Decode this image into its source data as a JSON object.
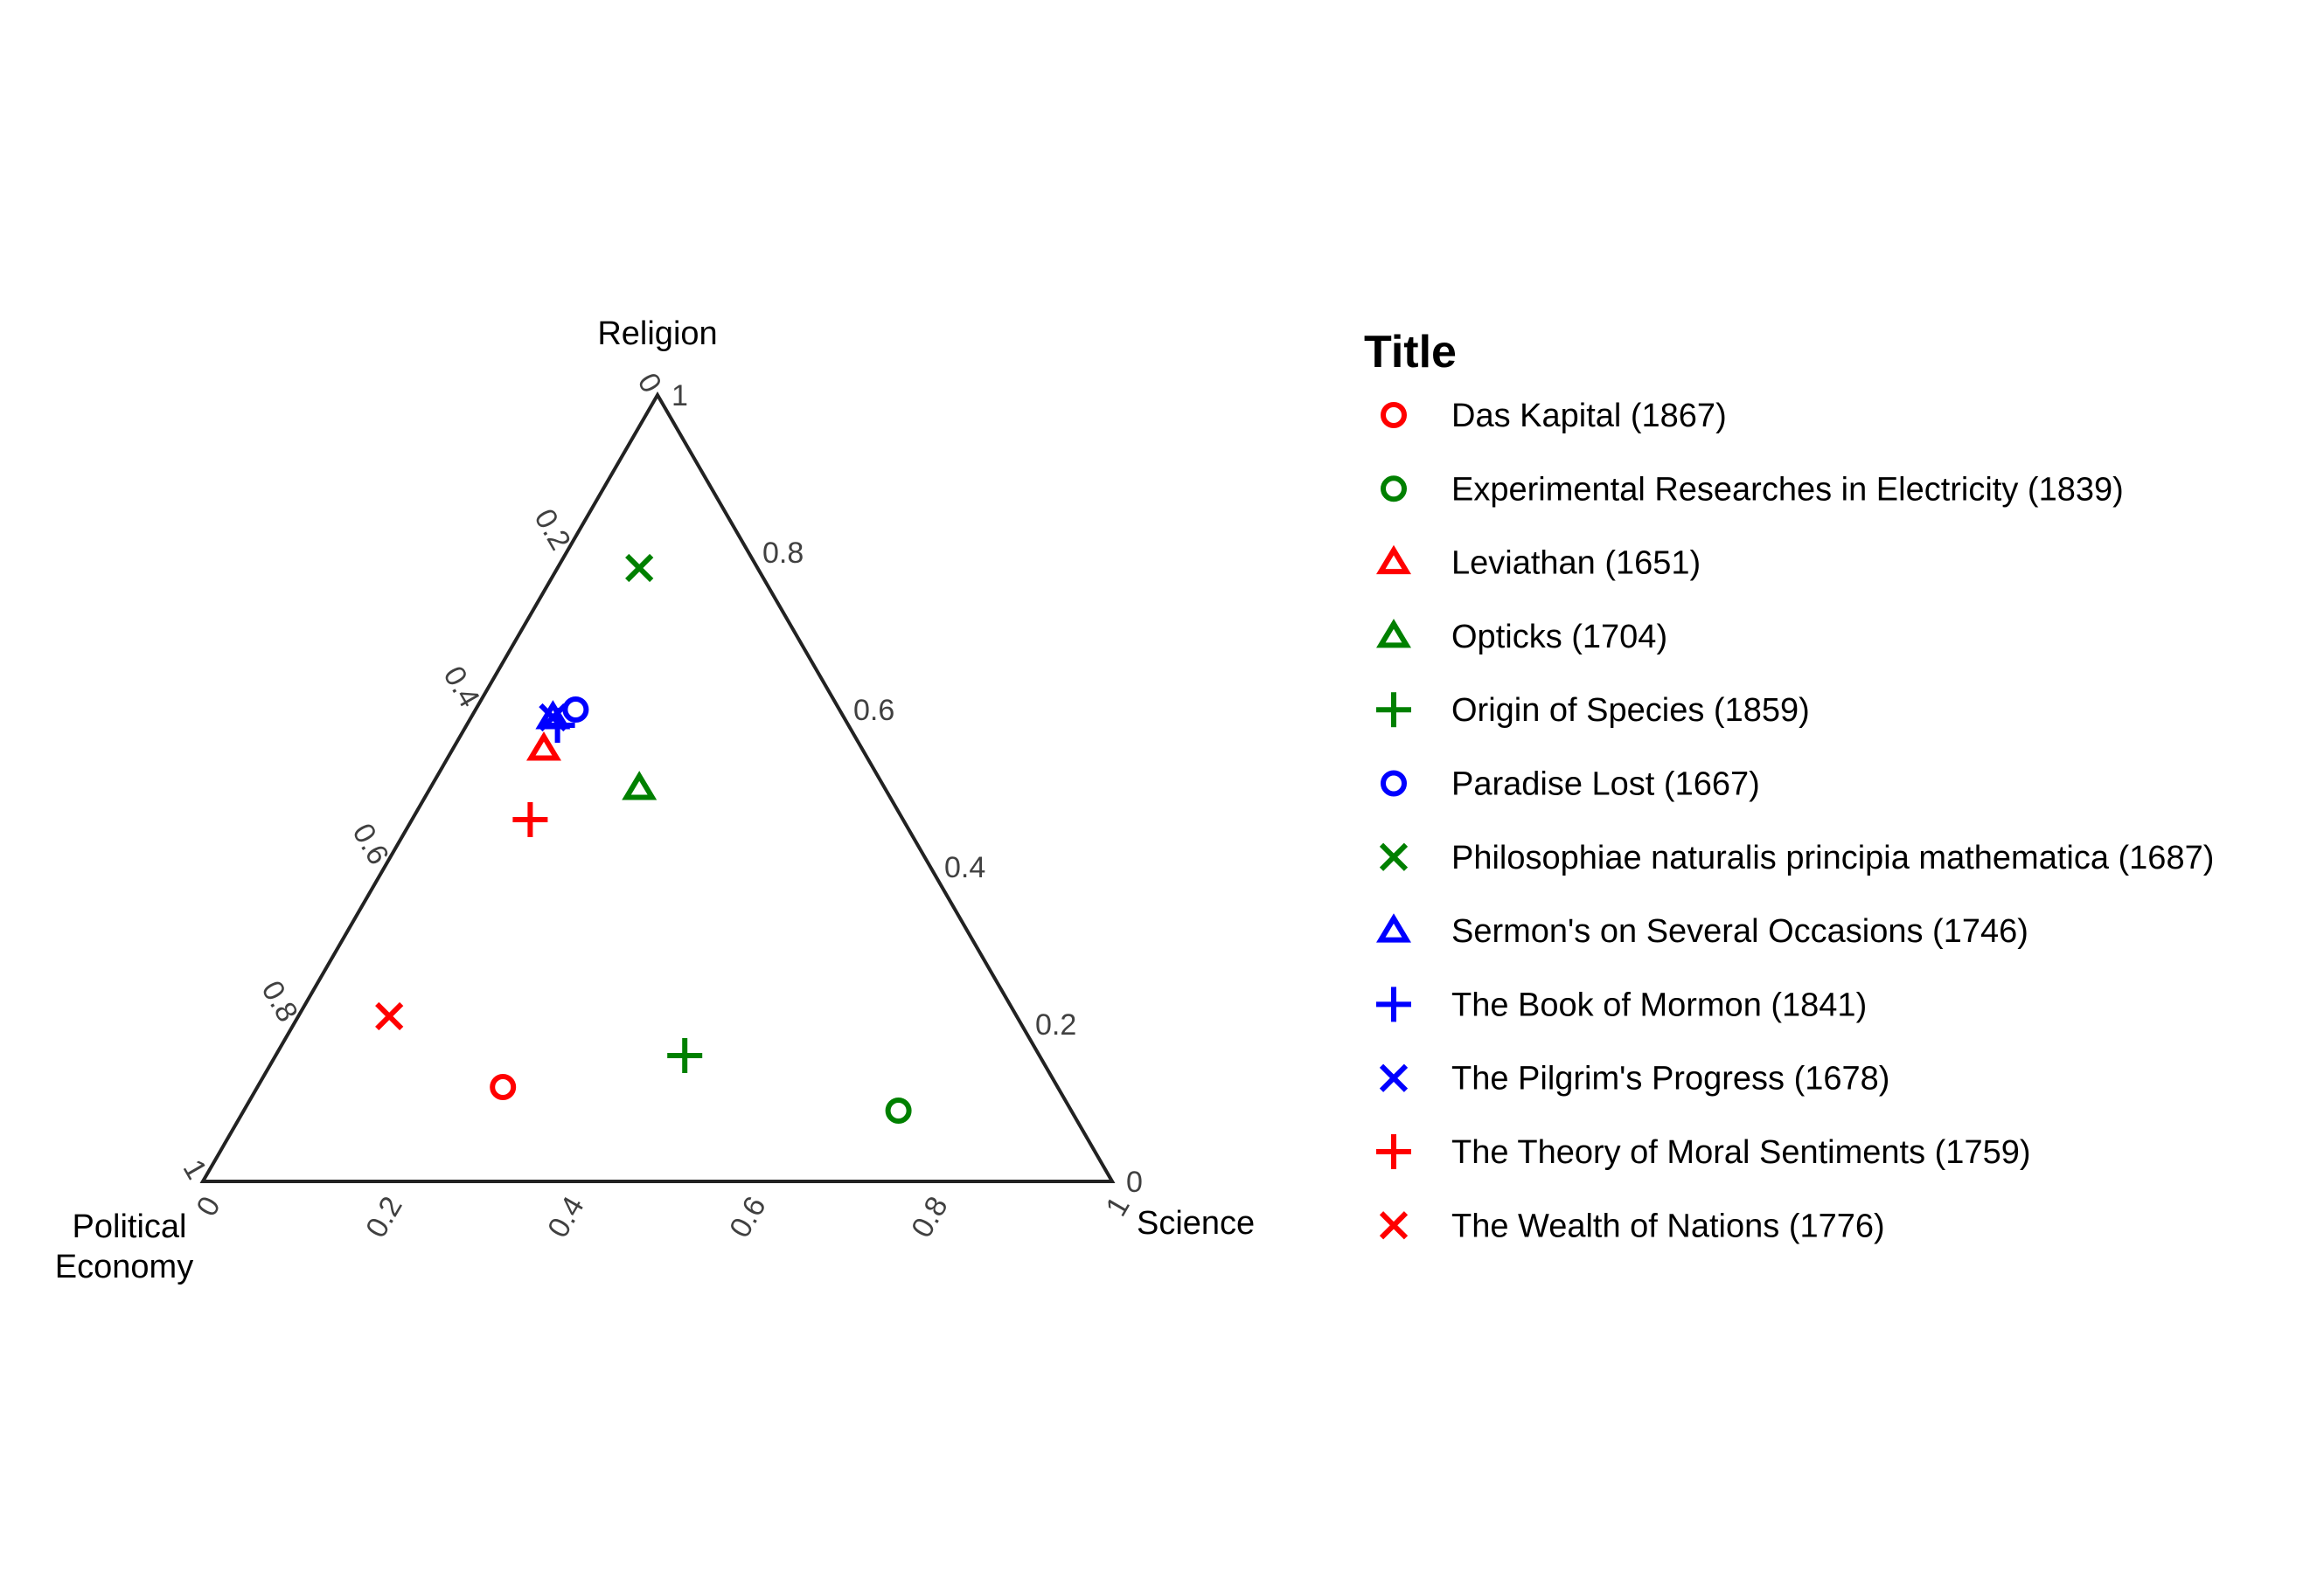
{
  "chart_data": {
    "type": "scatter",
    "subtype": "ternary",
    "axes": {
      "top": {
        "title": "Religion"
      },
      "right": {
        "title": "Science"
      },
      "left": {
        "title_lines": [
          "Political",
          "Economy"
        ]
      }
    },
    "ticks": [
      "0",
      "0.2",
      "0.4",
      "0.6",
      "0.8",
      "1"
    ],
    "tick_values": [
      0,
      0.2,
      0.4,
      0.6,
      0.8,
      1
    ],
    "grid": false,
    "legend": {
      "title": "Title",
      "placement": "right"
    },
    "colors": {
      "red": "#FF0000",
      "green": "#008000",
      "blue": "#0000FF",
      "axis": "#222222"
    },
    "series": [
      {
        "name": "Das Kapital (1867)",
        "color": "#FF0000",
        "shape": "circle",
        "religion": 0.12,
        "science": 0.27,
        "political_economy": 0.61
      },
      {
        "name": "Experimental Researches in Electricity (1839)",
        "color": "#008000",
        "shape": "circle",
        "religion": 0.09,
        "science": 0.72,
        "political_economy": 0.19
      },
      {
        "name": "Leviathan (1651)",
        "color": "#FF0000",
        "shape": "triangle",
        "religion": 0.55,
        "science": 0.1,
        "political_economy": 0.35
      },
      {
        "name": "Opticks (1704)",
        "color": "#008000",
        "shape": "triangle",
        "religion": 0.5,
        "science": 0.23,
        "political_economy": 0.27
      },
      {
        "name": "Origin of Species (1859)",
        "color": "#008000",
        "shape": "plus",
        "religion": 0.16,
        "science": 0.45,
        "political_economy": 0.39
      },
      {
        "name": "Paradise Lost (1667)",
        "color": "#0000FF",
        "shape": "circle",
        "religion": 0.6,
        "science": 0.11,
        "political_economy": 0.29
      },
      {
        "name": "Philosophiae naturalis principia mathematica (1687)",
        "color": "#008000",
        "shape": "x",
        "religion": 0.78,
        "science": 0.09,
        "political_economy": 0.13
      },
      {
        "name": "Sermon's on Several Occasions (1746)",
        "color": "#0000FF",
        "shape": "triangle",
        "religion": 0.59,
        "science": 0.09,
        "political_economy": 0.32
      },
      {
        "name": "The Book of Mormon (1841)",
        "color": "#0000FF",
        "shape": "plus",
        "religion": 0.58,
        "science": 0.1,
        "political_economy": 0.32
      },
      {
        "name": "The Pilgrim's Progress (1678)",
        "color": "#0000FF",
        "shape": "x",
        "religion": 0.59,
        "science": 0.09,
        "political_economy": 0.32
      },
      {
        "name": "The Theory of Moral Sentiments (1759)",
        "color": "#FF0000",
        "shape": "plus",
        "religion": 0.46,
        "science": 0.13,
        "political_economy": 0.41
      },
      {
        "name": "The Wealth of Nations (1776)",
        "color": "#FF0000",
        "shape": "x",
        "religion": 0.21,
        "science": 0.1,
        "political_economy": 0.69
      }
    ]
  }
}
